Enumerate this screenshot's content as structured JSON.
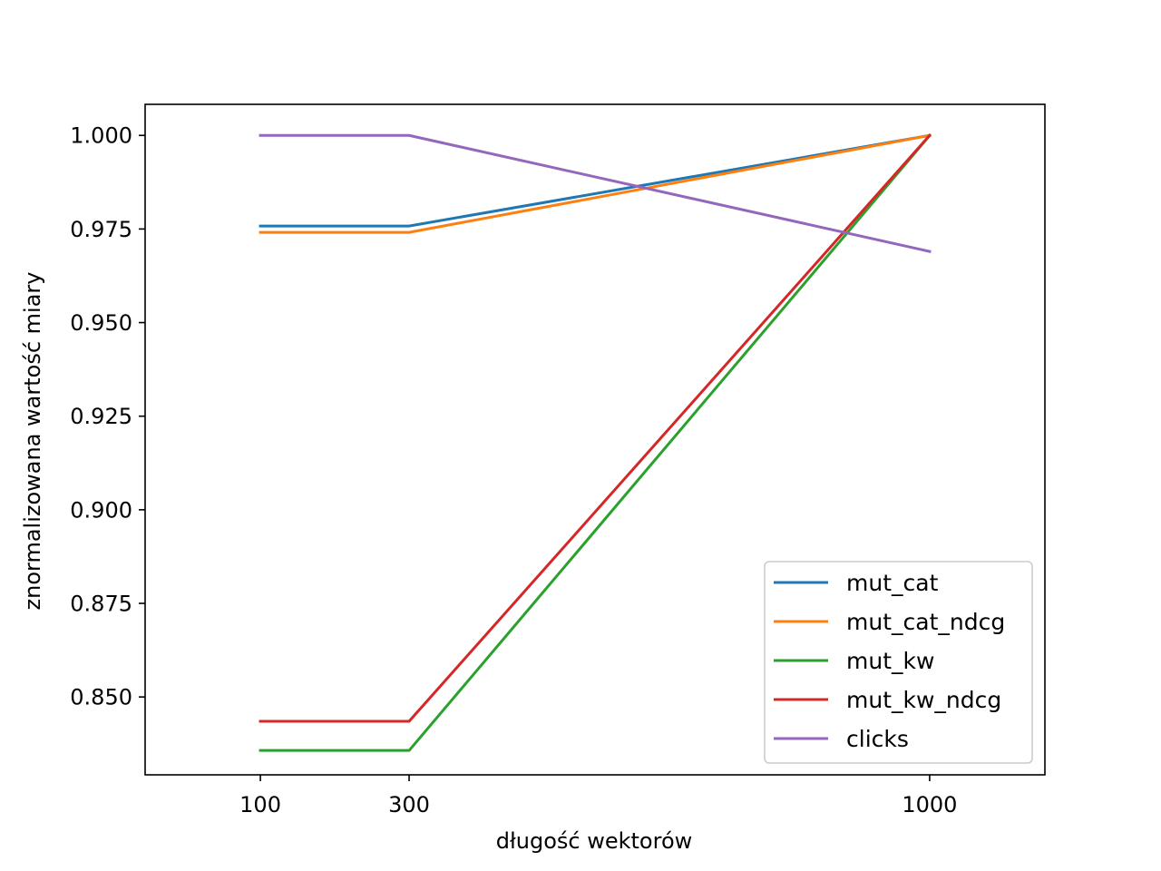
{
  "chart_data": {
    "type": "line",
    "title": "",
    "xlabel": "długość wektorów",
    "ylabel": "znormalizowana wartość miary",
    "x": [
      100,
      300,
      1000
    ],
    "x_ticks": [
      "100",
      "300",
      "1000"
    ],
    "xlim": [
      -55,
      1155
    ],
    "ylim": [
      0.8292,
      1.0083
    ],
    "y_ticks": [
      "0.850",
      "0.875",
      "0.900",
      "0.925",
      "0.950",
      "0.975",
      "1.000"
    ],
    "y_tick_values": [
      0.85,
      0.875,
      0.9,
      0.925,
      0.95,
      0.975,
      1.0
    ],
    "grid": false,
    "legend_position": "lower-right",
    "series": [
      {
        "name": "mut_cat",
        "color": "#1f77b4",
        "values": [
          0.9758,
          0.9758,
          1.0
        ]
      },
      {
        "name": "mut_cat_ndcg",
        "color": "#ff7f0e",
        "values": [
          0.9741,
          0.9741,
          1.0
        ]
      },
      {
        "name": "mut_kw",
        "color": "#2ca02c",
        "values": [
          0.8357,
          0.8357,
          1.0
        ]
      },
      {
        "name": "mut_kw_ndcg",
        "color": "#d62728",
        "values": [
          0.8435,
          0.8435,
          1.0
        ]
      },
      {
        "name": "clicks",
        "color": "#9467bd",
        "values": [
          1.0,
          1.0,
          0.969
        ]
      }
    ]
  }
}
